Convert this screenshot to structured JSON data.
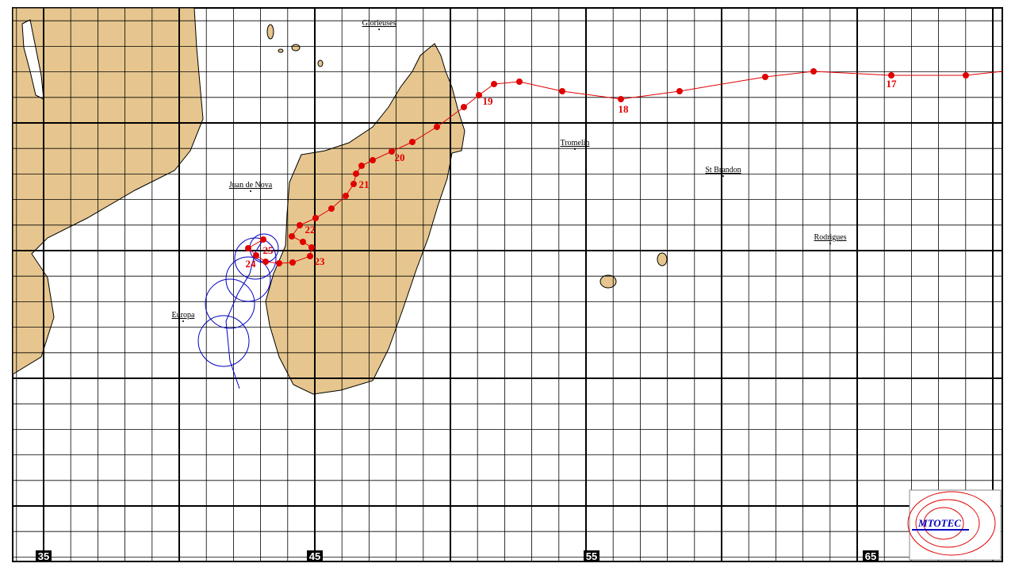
{
  "places": [
    "Glorieuses",
    "Tromelin",
    "St Brandon",
    "Juan de Nova",
    "Rodrigues",
    "Europa"
  ],
  "track_days": [
    "17",
    "18",
    "19",
    "20",
    "21",
    "22",
    "23",
    "24",
    "25"
  ],
  "longitudes": [
    "35",
    "45",
    "55",
    "65"
  ],
  "logo": "MTOTEC"
}
